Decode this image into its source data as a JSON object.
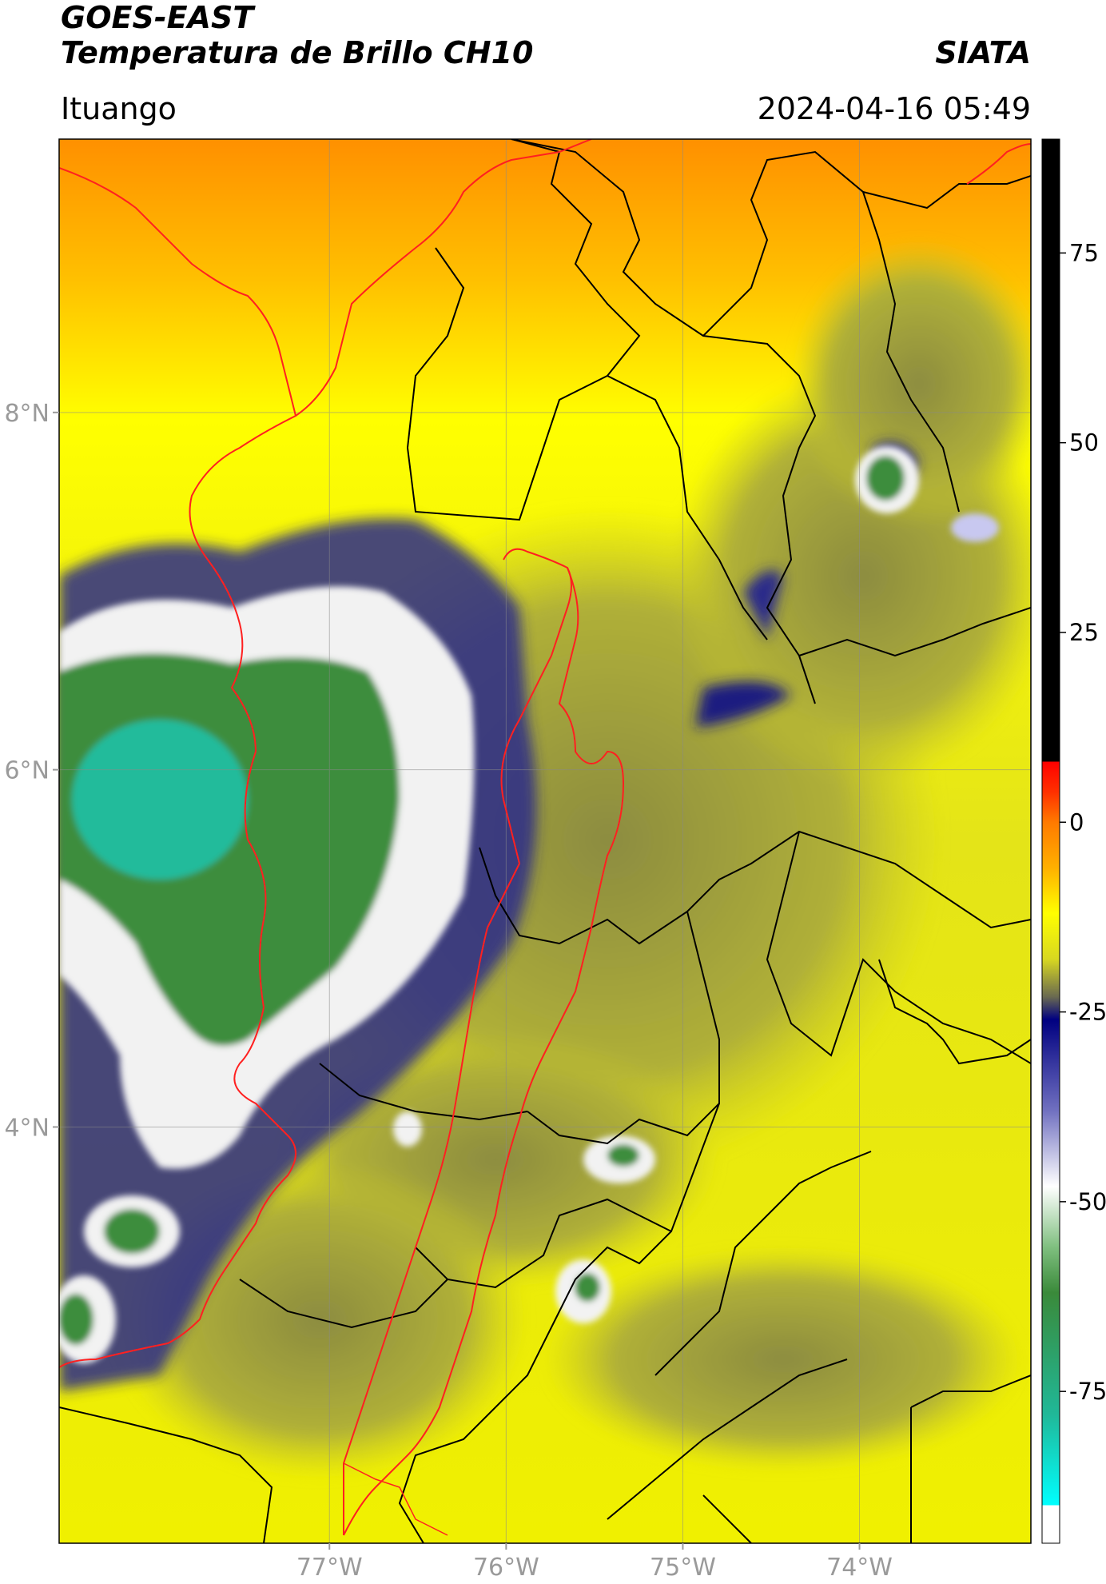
{
  "header": {
    "title_line1": "GOES-EAST",
    "title_line2": "Temperatura de Brillo CH10",
    "brand": "SIATA",
    "location": "Ituango",
    "timestamp": "2024-04-16 05:49"
  },
  "map": {
    "lon_range": [
      -78.53,
      -73.03
    ],
    "lat_range": [
      1.67,
      9.53
    ],
    "lat_ticks": [
      {
        "value": 8,
        "label": "8°N"
      },
      {
        "value": 6,
        "label": "6°N"
      },
      {
        "value": 4,
        "label": "4°N"
      }
    ],
    "lon_ticks": [
      {
        "value": -77,
        "label": "77°W"
      },
      {
        "value": -76,
        "label": "76°W"
      },
      {
        "value": -75,
        "label": "75°W"
      },
      {
        "value": -74,
        "label": "74°W"
      }
    ],
    "colors": {
      "warm_orange": "#ff9a00",
      "yellow": "#f4f400",
      "olive": "#a8a83a",
      "navy": "#0a0a7a",
      "white": "#f4f4f4",
      "green": "#3a8a3a",
      "teal": "#20c0a0",
      "country_border": "#ff2020",
      "admin_border": "#000000"
    }
  },
  "colorbar": {
    "vmin": -95,
    "vmax": 90,
    "ticks": [
      {
        "value": 75,
        "label": "75"
      },
      {
        "value": 50,
        "label": "50"
      },
      {
        "value": 25,
        "label": "25"
      },
      {
        "value": 0,
        "label": "0"
      },
      {
        "value": -25,
        "label": "-25"
      },
      {
        "value": -50,
        "label": "-50"
      },
      {
        "value": -75,
        "label": "-75"
      }
    ],
    "stops": [
      {
        "value": 90,
        "color": "#000000"
      },
      {
        "value": 8,
        "color": "#000000"
      },
      {
        "value": 8,
        "color": "#ff0000"
      },
      {
        "value": 4,
        "color": "#ff3000"
      },
      {
        "value": 0,
        "color": "#ff7a00"
      },
      {
        "value": -6,
        "color": "#ffb000"
      },
      {
        "value": -12,
        "color": "#ffff00"
      },
      {
        "value": -18,
        "color": "#d8d820"
      },
      {
        "value": -23,
        "color": "#6a6a50"
      },
      {
        "value": -26,
        "color": "#000080"
      },
      {
        "value": -38,
        "color": "#7070c0"
      },
      {
        "value": -48,
        "color": "#ffffff"
      },
      {
        "value": -56,
        "color": "#7fbf7f"
      },
      {
        "value": -62,
        "color": "#3a8a3a"
      },
      {
        "value": -78,
        "color": "#20b898"
      },
      {
        "value": -90,
        "color": "#00ffff"
      },
      {
        "value": -90,
        "color": "#ffffff"
      },
      {
        "value": -95,
        "color": "#ffffff"
      }
    ]
  }
}
